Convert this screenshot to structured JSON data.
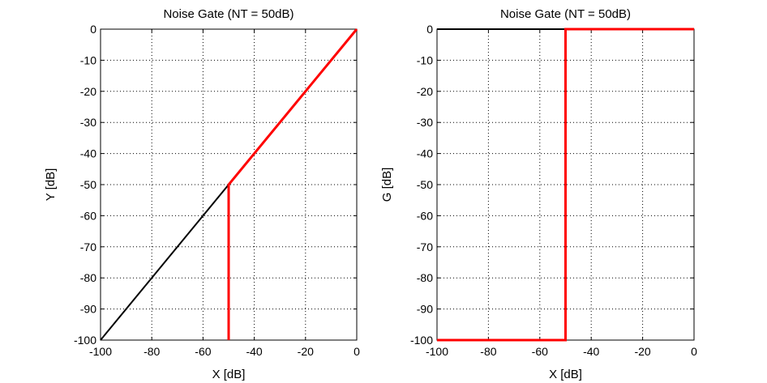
{
  "chart_data": [
    {
      "type": "line",
      "title": "Noise Gate (NT = 50dB)",
      "xlabel": "X [dB]",
      "ylabel": "Y [dB]",
      "xlim": [
        -100,
        0
      ],
      "ylim": [
        -100,
        0
      ],
      "xticks": [
        -100,
        -80,
        -60,
        -40,
        -20,
        0
      ],
      "yticks": [
        0,
        -10,
        -20,
        -30,
        -40,
        -50,
        -60,
        -70,
        -80,
        -90,
        -100
      ],
      "grid": true,
      "series": [
        {
          "color": "#000000",
          "x": [
            -100,
            -50
          ],
          "y": [
            -100,
            -50
          ]
        },
        {
          "color": "#ff0000",
          "x": [
            -50,
            -50,
            0
          ],
          "y": [
            -100,
            -50,
            0
          ]
        }
      ]
    },
    {
      "type": "line",
      "title": "Noise Gate (NT = 50dB)",
      "xlabel": "X [dB]",
      "ylabel": "G [dB]",
      "xlim": [
        -100,
        0
      ],
      "ylim": [
        -100,
        0
      ],
      "xticks": [
        -100,
        -80,
        -60,
        -40,
        -20,
        0
      ],
      "yticks": [
        0,
        -10,
        -20,
        -30,
        -40,
        -50,
        -60,
        -70,
        -80,
        -90,
        -100
      ],
      "grid": true,
      "series": [
        {
          "color": "#000000",
          "x": [
            -100,
            -50
          ],
          "y": [
            0,
            0
          ]
        },
        {
          "color": "#ff0000",
          "x": [
            -100,
            -50,
            -50,
            0
          ],
          "y": [
            -100,
            -100,
            0,
            0
          ]
        }
      ]
    }
  ]
}
